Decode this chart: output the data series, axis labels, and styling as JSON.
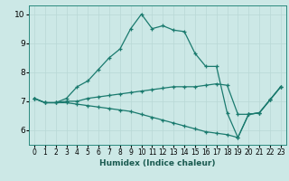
{
  "title": "",
  "xlabel": "Humidex (Indice chaleur)",
  "xlim": [
    -0.5,
    23.5
  ],
  "ylim": [
    5.5,
    10.3
  ],
  "yticks": [
    6,
    7,
    8,
    9,
    10
  ],
  "xticks": [
    0,
    1,
    2,
    3,
    4,
    5,
    6,
    7,
    8,
    9,
    10,
    11,
    12,
    13,
    14,
    15,
    16,
    17,
    18,
    19,
    20,
    21,
    22,
    23
  ],
  "bg_color": "#cce8e6",
  "line_color": "#1a7a6e",
  "grid_color": "#b8d8d5",
  "line1_x": [
    0,
    1,
    2,
    3,
    4,
    5,
    6,
    7,
    8,
    9,
    10,
    11,
    12,
    13,
    14,
    15,
    16,
    17,
    18,
    19,
    20,
    21,
    22,
    23
  ],
  "line1_y": [
    7.1,
    6.95,
    6.95,
    7.1,
    7.5,
    7.7,
    8.1,
    8.5,
    8.8,
    9.5,
    10.0,
    9.5,
    9.6,
    9.45,
    9.4,
    8.65,
    8.2,
    8.2,
    6.6,
    5.75,
    6.55,
    6.6,
    7.05,
    7.5
  ],
  "line2_x": [
    0,
    1,
    2,
    3,
    4,
    5,
    6,
    7,
    8,
    9,
    10,
    11,
    12,
    13,
    14,
    15,
    16,
    17,
    18,
    19,
    20,
    21,
    22,
    23
  ],
  "line2_y": [
    7.1,
    6.95,
    6.95,
    7.0,
    7.0,
    7.1,
    7.15,
    7.2,
    7.25,
    7.3,
    7.35,
    7.4,
    7.45,
    7.5,
    7.5,
    7.5,
    7.55,
    7.6,
    7.55,
    6.55,
    6.55,
    6.6,
    7.05,
    7.5
  ],
  "line3_x": [
    0,
    1,
    2,
    3,
    4,
    5,
    6,
    7,
    8,
    9,
    10,
    11,
    12,
    13,
    14,
    15,
    16,
    17,
    18,
    19,
    20,
    21,
    22,
    23
  ],
  "line3_y": [
    7.1,
    6.95,
    6.95,
    6.95,
    6.9,
    6.85,
    6.8,
    6.75,
    6.7,
    6.65,
    6.55,
    6.45,
    6.35,
    6.25,
    6.15,
    6.05,
    5.95,
    5.9,
    5.85,
    5.75,
    6.55,
    6.6,
    7.05,
    7.5
  ]
}
